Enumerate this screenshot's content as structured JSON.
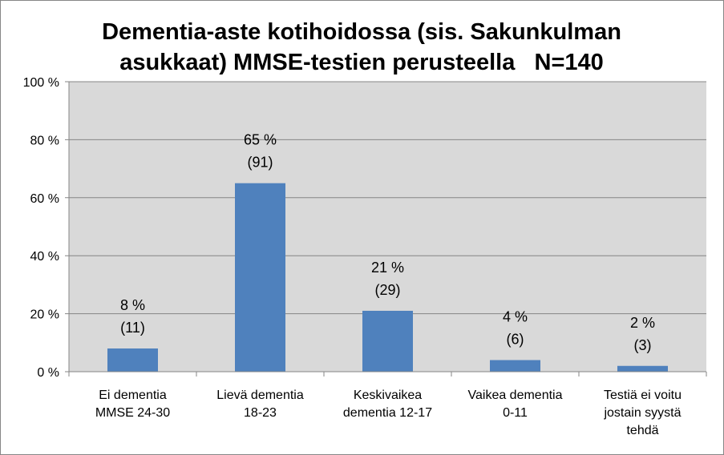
{
  "chart_data": {
    "type": "bar",
    "title": "Dementia-aste kotihoidossa (sis. Sakunkulman asukkaat) MMSE-testien perusteella   N=140",
    "title_lines": [
      "Dementia-aste kotihoidossa (sis. Sakunkulman",
      "asukkaat) MMSE-testien perusteella   N=140"
    ],
    "categories": [
      [
        "Ei dementia",
        "MMSE 24-30"
      ],
      [
        "Lievä dementia",
        "18-23"
      ],
      [
        "Keskivaikea",
        "dementia 12-17"
      ],
      [
        "Vaikea dementia",
        "0-11"
      ],
      [
        "Testiä ei voitu",
        "jostain syystä",
        "tehdä"
      ]
    ],
    "values": [
      8,
      65,
      21,
      4,
      2
    ],
    "labels_percent": [
      "8 %",
      "65 %",
      "21 %",
      "4 %",
      "2 %"
    ],
    "labels_count": [
      "(11)",
      "(91)",
      "(29)",
      "(6)",
      "(3)"
    ],
    "ylim": [
      0,
      100
    ],
    "yticks": [
      0,
      20,
      40,
      60,
      80,
      100
    ],
    "ytick_labels": [
      "0 %",
      "20 %",
      "40 %",
      "60 %",
      "80 %",
      "100 %"
    ],
    "grid": true,
    "legend": "none",
    "colors": {
      "bar": "#4F81BD",
      "plot_background": "#D9D9D9",
      "gridline": "#868686"
    }
  }
}
